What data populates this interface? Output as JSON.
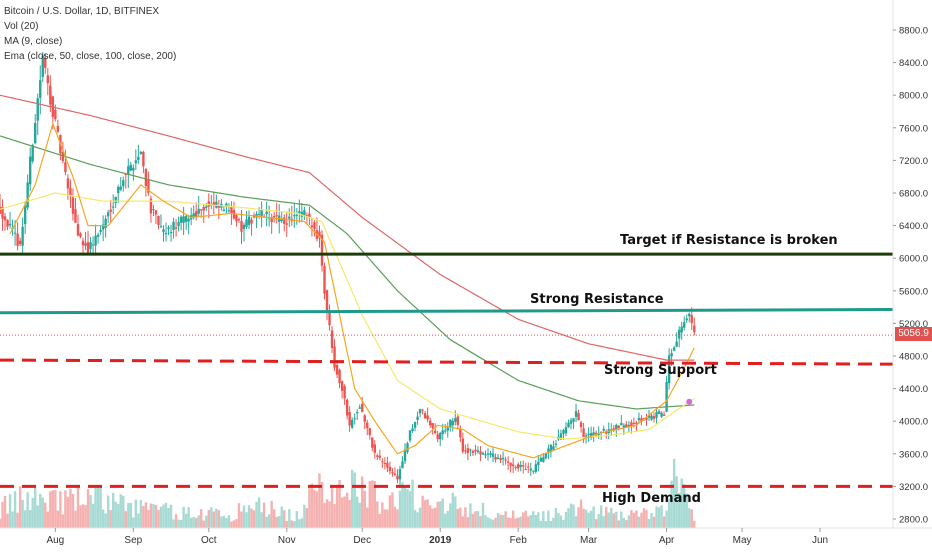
{
  "chart_data": {
    "type": "candlestick",
    "title": "Bitcoin / U.S. Dollar, 1D, BITFINEX",
    "indicators": [
      "Vol (20)",
      "MA (9, close)",
      "Ema (close, 50, close, 100, close, 200)"
    ],
    "x_tick_labels": [
      "Aug",
      "Sep",
      "Oct",
      "Nov",
      "Dec",
      "2019",
      "Feb",
      "Mar",
      "Apr",
      "May",
      "Jun"
    ],
    "y_tick_labels": [
      "8800.0",
      "8400.0",
      "8000.0",
      "7600.0",
      "7200.0",
      "6800.0",
      "6400.0",
      "6000.0",
      "5600.0",
      "5200.0",
      "4800.0",
      "4400.0",
      "4000.0",
      "3600.0",
      "3200.0",
      "2800.0"
    ],
    "ylim": [
      2700,
      9100
    ],
    "last_price": "5056.9",
    "price_path": [
      [
        "2018-07-10",
        6600
      ],
      [
        "2018-07-18",
        6150
      ],
      [
        "2018-07-24",
        7700
      ],
      [
        "2018-07-27",
        8450
      ],
      [
        "2018-07-31",
        7800
      ],
      [
        "2018-08-05",
        7000
      ],
      [
        "2018-08-10",
        6300
      ],
      [
        "2018-08-14",
        6100
      ],
      [
        "2018-08-20",
        6400
      ],
      [
        "2018-08-28",
        7000
      ],
      [
        "2018-09-04",
        7300
      ],
      [
        "2018-09-08",
        6600
      ],
      [
        "2018-09-13",
        6300
      ],
      [
        "2018-09-20",
        6450
      ],
      [
        "2018-09-30",
        6650
      ],
      [
        "2018-10-10",
        6600
      ],
      [
        "2018-10-14",
        6350
      ],
      [
        "2018-10-20",
        6550
      ],
      [
        "2018-10-31",
        6450
      ],
      [
        "2018-11-08",
        6550
      ],
      [
        "2018-11-14",
        6250
      ],
      [
        "2018-11-16",
        5600
      ],
      [
        "2018-11-20",
        4700
      ],
      [
        "2018-11-23",
        4400
      ],
      [
        "2018-11-26",
        3950
      ],
      [
        "2018-11-30",
        4200
      ],
      [
        "2018-12-06",
        3600
      ],
      [
        "2018-12-15",
        3300
      ],
      [
        "2018-12-20",
        3850
      ],
      [
        "2018-12-24",
        4150
      ],
      [
        "2018-12-31",
        3800
      ],
      [
        "2019-01-07",
        4050
      ],
      [
        "2019-01-10",
        3650
      ],
      [
        "2019-01-20",
        3600
      ],
      [
        "2019-01-31",
        3450
      ],
      [
        "2019-02-07",
        3400
      ],
      [
        "2019-02-12",
        3600
      ],
      [
        "2019-02-20",
        3900
      ],
      [
        "2019-02-24",
        4100
      ],
      [
        "2019-02-27",
        3800
      ],
      [
        "2019-03-10",
        3900
      ],
      [
        "2019-03-20",
        4000
      ],
      [
        "2019-03-31",
        4100
      ],
      [
        "2019-04-02",
        4800
      ],
      [
        "2019-04-06",
        5100
      ],
      [
        "2019-04-08",
        5250
      ],
      [
        "2019-04-10",
        5300
      ],
      [
        "2019-04-12",
        5056.9
      ]
    ],
    "ma_9": [
      [
        "2018-07-14",
        6300
      ],
      [
        "2018-07-24",
        6900
      ],
      [
        "2018-07-31",
        7650
      ],
      [
        "2018-08-08",
        7000
      ],
      [
        "2018-08-14",
        6400
      ],
      [
        "2018-08-22",
        6400
      ],
      [
        "2018-09-04",
        6900
      ],
      [
        "2018-09-13",
        6700
      ],
      [
        "2018-09-24",
        6500
      ],
      [
        "2018-10-10",
        6550
      ],
      [
        "2018-11-08",
        6450
      ],
      [
        "2018-11-16",
        6200
      ],
      [
        "2018-11-22",
        5300
      ],
      [
        "2018-11-28",
        4400
      ],
      [
        "2018-12-06",
        4000
      ],
      [
        "2018-12-15",
        3600
      ],
      [
        "2018-12-22",
        3700
      ],
      [
        "2018-12-31",
        3950
      ],
      [
        "2019-01-10",
        3900
      ],
      [
        "2019-01-20",
        3700
      ],
      [
        "2019-02-07",
        3550
      ],
      [
        "2019-02-20",
        3700
      ],
      [
        "2019-03-05",
        3850
      ],
      [
        "2019-03-20",
        3950
      ],
      [
        "2019-04-01",
        4250
      ],
      [
        "2019-04-08",
        4650
      ],
      [
        "2019-04-12",
        4900
      ]
    ],
    "ema_50": [
      [
        "2018-07-10",
        6600
      ],
      [
        "2018-08-01",
        6800
      ],
      [
        "2018-08-20",
        6700
      ],
      [
        "2018-09-15",
        6700
      ],
      [
        "2018-10-15",
        6620
      ],
      [
        "2018-11-05",
        6550
      ],
      [
        "2018-11-15",
        6450
      ],
      [
        "2018-12-01",
        5300
      ],
      [
        "2018-12-15",
        4500
      ],
      [
        "2019-01-01",
        4150
      ],
      [
        "2019-02-01",
        3870
      ],
      [
        "2019-02-20",
        3780
      ],
      [
        "2019-03-10",
        3830
      ],
      [
        "2019-03-25",
        3900
      ],
      [
        "2019-04-01",
        4050
      ],
      [
        "2019-04-12",
        4280
      ]
    ],
    "ema_100": [
      [
        "2018-07-10",
        7500
      ],
      [
        "2018-08-15",
        7150
      ],
      [
        "2018-09-15",
        6900
      ],
      [
        "2018-10-15",
        6750
      ],
      [
        "2018-11-10",
        6650
      ],
      [
        "2018-11-25",
        6300
      ],
      [
        "2018-12-15",
        5600
      ],
      [
        "2019-01-05",
        5000
      ],
      [
        "2019-02-01",
        4500
      ],
      [
        "2019-02-25",
        4250
      ],
      [
        "2019-03-20",
        4150
      ],
      [
        "2019-04-12",
        4200
      ]
    ],
    "ema_200": [
      [
        "2018-07-10",
        8000
      ],
      [
        "2018-08-15",
        7750
      ],
      [
        "2018-09-15",
        7500
      ],
      [
        "2018-10-15",
        7250
      ],
      [
        "2018-11-10",
        7050
      ],
      [
        "2018-12-01",
        6500
      ],
      [
        "2019-01-01",
        5800
      ],
      [
        "2019-02-01",
        5250
      ],
      [
        "2019-03-01",
        4950
      ],
      [
        "2019-04-01",
        4750
      ],
      [
        "2019-04-12",
        4750
      ]
    ],
    "volume_profile": [
      [
        "2018-07-10",
        0.25
      ],
      [
        "2018-07-25",
        0.45
      ],
      [
        "2018-08-05",
        0.35
      ],
      [
        "2018-08-15",
        0.4
      ],
      [
        "2018-09-01",
        0.28
      ],
      [
        "2018-09-20",
        0.2
      ],
      [
        "2018-10-10",
        0.18
      ],
      [
        "2018-10-20",
        0.3
      ],
      [
        "2018-11-05",
        0.15
      ],
      [
        "2018-11-15",
        0.55
      ],
      [
        "2018-11-25",
        0.6
      ],
      [
        "2018-12-10",
        0.35
      ],
      [
        "2018-12-20",
        0.45
      ],
      [
        "2019-01-10",
        0.3
      ],
      [
        "2019-01-25",
        0.15
      ],
      [
        "2019-02-10",
        0.15
      ],
      [
        "2019-02-25",
        0.25
      ],
      [
        "2019-03-10",
        0.18
      ],
      [
        "2019-03-30",
        0.2
      ],
      [
        "2019-04-04",
        0.65
      ],
      [
        "2019-04-12",
        0.15
      ]
    ],
    "levels": [
      {
        "label": "Target if Resistance is broken",
        "price": 6050,
        "style": "solid",
        "color": "#1a3d0a"
      },
      {
        "label": "Strong Resistance",
        "from": [
          "2018-07-10",
          5330
        ],
        "to": [
          "2019-06-30",
          5370
        ],
        "style": "solid",
        "color": "#1f9a8a"
      },
      {
        "label": "Strong Support",
        "from": [
          "2018-07-10",
          4750
        ],
        "to": [
          "2019-06-30",
          4700
        ],
        "style": "dashed",
        "color": "#e01f1f"
      },
      {
        "label": "High Demand",
        "price": 3200,
        "style": "dashed",
        "color": "#e01f1f"
      }
    ],
    "x_start": "2018-07-10",
    "x_end": "2019-06-30",
    "colors": {
      "up": "#26a69a",
      "down": "#ef5350",
      "ma9": "#f5a623",
      "ema50": "#f5e86b",
      "ema100": "#5a9e58",
      "ema200": "#e06666",
      "last_price": "#e0524f"
    }
  }
}
